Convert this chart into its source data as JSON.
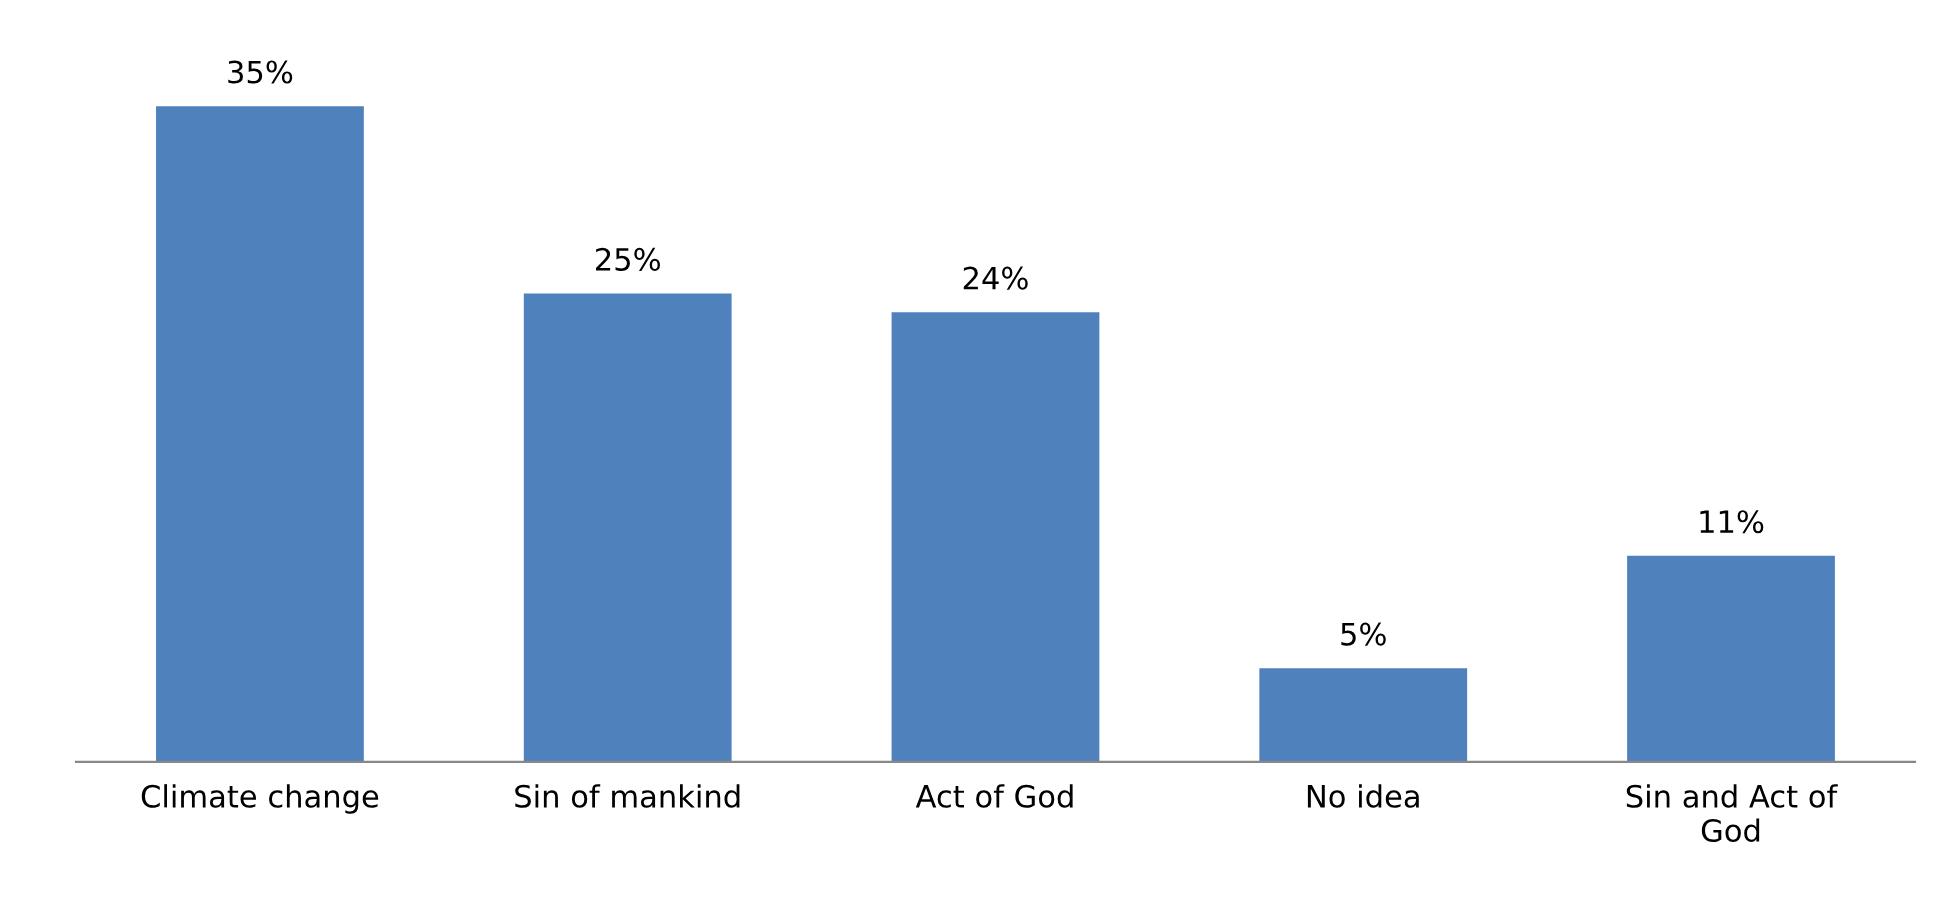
{
  "chart_data": {
    "type": "bar",
    "categories": [
      "Climate change",
      "Sin of mankind",
      "Act of God",
      "No idea",
      "Sin and Act of\nGod"
    ],
    "values": [
      35,
      25,
      24,
      5,
      11
    ],
    "color": "#4f81bd",
    "data_labels": true,
    "value_labels": [
      "35%",
      "25%",
      "24%",
      "5%",
      "11%"
    ],
    "grid": false,
    "legend": false,
    "tick_labels": "x"
  }
}
